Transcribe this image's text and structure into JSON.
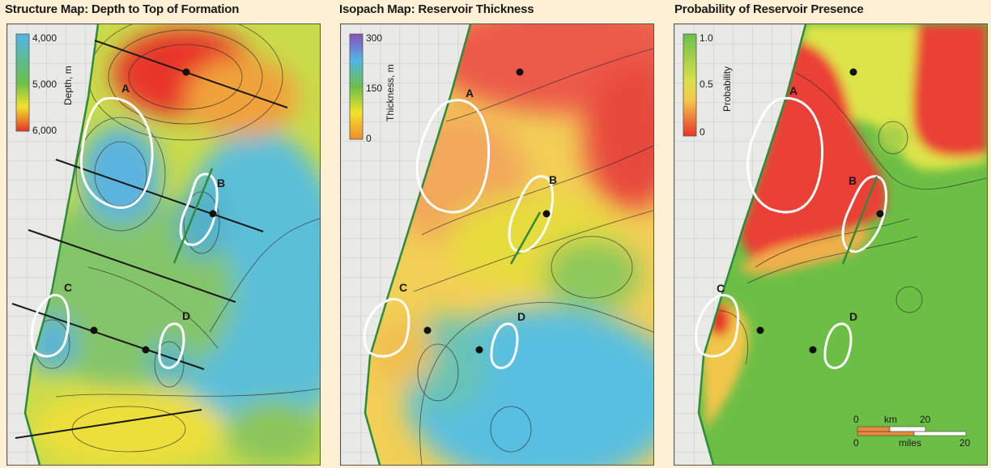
{
  "panels": [
    {
      "title": "Structure Map: Depth to Top of Formation",
      "legend": {
        "label": "Depth, m",
        "ticks": [
          "4,000",
          "5,000",
          "6,000"
        ]
      },
      "prospects": [
        "A",
        "B",
        "C",
        "D"
      ]
    },
    {
      "title": "Isopach Map: Reservoir Thickness",
      "legend": {
        "label": "Thickness, m",
        "ticks": [
          "300",
          "150",
          "0"
        ]
      },
      "prospects": [
        "A",
        "B",
        "C",
        "D"
      ]
    },
    {
      "title": "Probability of Reservoir Presence",
      "legend": {
        "label": "Probability",
        "ticks": [
          "1.0",
          "0.5",
          "0"
        ]
      },
      "prospects": [
        "A",
        "B",
        "C",
        "D"
      ]
    }
  ],
  "scale_bar": {
    "km_label": "km",
    "miles_label": "miles",
    "zero": "0",
    "km_max": "20",
    "miles_max": "20"
  },
  "colors": {
    "background": "#fdf0d4",
    "prospect_outline": "#ffffff",
    "coastline": "#2e8b3c",
    "well": "#111111"
  }
}
